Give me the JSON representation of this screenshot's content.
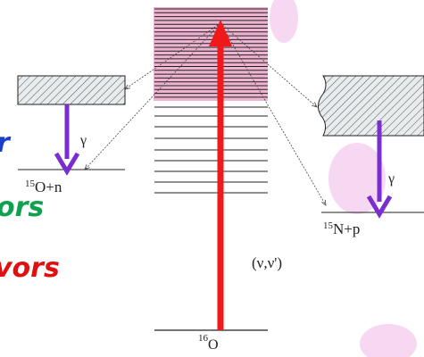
{
  "slide_fragments": [
    "r",
    "ors",
    "vors"
  ],
  "left_channel": {
    "gamma": "γ",
    "mass": "15",
    "nucleus": "O+n"
  },
  "right_channel": {
    "gamma": "γ",
    "mass": "15",
    "nucleus": "N+p"
  },
  "center": {
    "mass": "16",
    "nucleus": "O",
    "reaction": "(ν,ν')"
  }
}
